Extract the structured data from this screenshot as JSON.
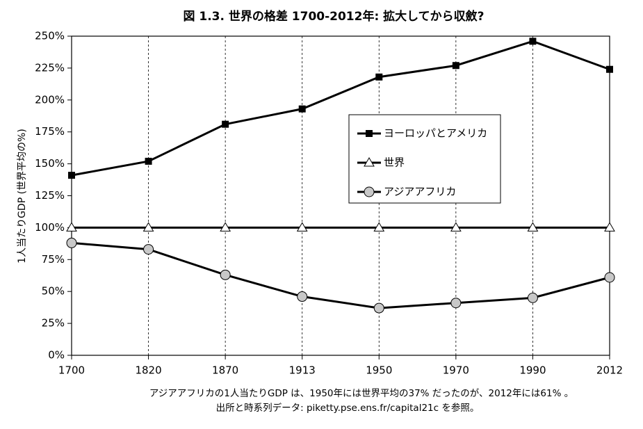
{
  "chart_data": {
    "type": "line",
    "title": "図 1.3. 世界の格差 1700-2012年: 拡大してから収斂?",
    "y_label": "1人当たりGDP (世界平均の%)",
    "categories": [
      "1700",
      "1820",
      "1870",
      "1913",
      "1950",
      "1970",
      "1990",
      "2012"
    ],
    "series": [
      {
        "name": "ヨーロッパとアメリカ",
        "color": "#000000",
        "marker": "square",
        "values": [
          141,
          152,
          181,
          193,
          218,
          227,
          246,
          224
        ]
      },
      {
        "name": "世界",
        "color": "#000000",
        "marker": "triangle",
        "values": [
          100,
          100,
          100,
          100,
          100,
          100,
          100,
          100
        ]
      },
      {
        "name": "アジアアフリカ",
        "color": "#000000",
        "marker": "circle",
        "values": [
          88,
          83,
          63,
          46,
          37,
          41,
          45,
          61
        ]
      }
    ],
    "ylim": [
      0,
      250
    ],
    "yticks": [
      {
        "value": 0,
        "label": "0%"
      },
      {
        "value": 25,
        "label": "25%"
      },
      {
        "value": 50,
        "label": "50%"
      },
      {
        "value": 75,
        "label": "75%"
      },
      {
        "value": 100,
        "label": "100%"
      },
      {
        "value": 125,
        "label": "125%"
      },
      {
        "value": 150,
        "label": "150%"
      },
      {
        "value": 175,
        "label": "175%"
      },
      {
        "value": 200,
        "label": "200%"
      },
      {
        "value": 225,
        "label": "225%"
      },
      {
        "value": 250,
        "label": "250%"
      }
    ],
    "vertical_grid": true,
    "notes": [
      "アジアアフリカの1人当たりGDP は、1950年には世界平均の37% だったのが、2012年には61% 。",
      "出所と時系列データ: piketty.pse.ens.fr/capital21c を参照。"
    ]
  }
}
